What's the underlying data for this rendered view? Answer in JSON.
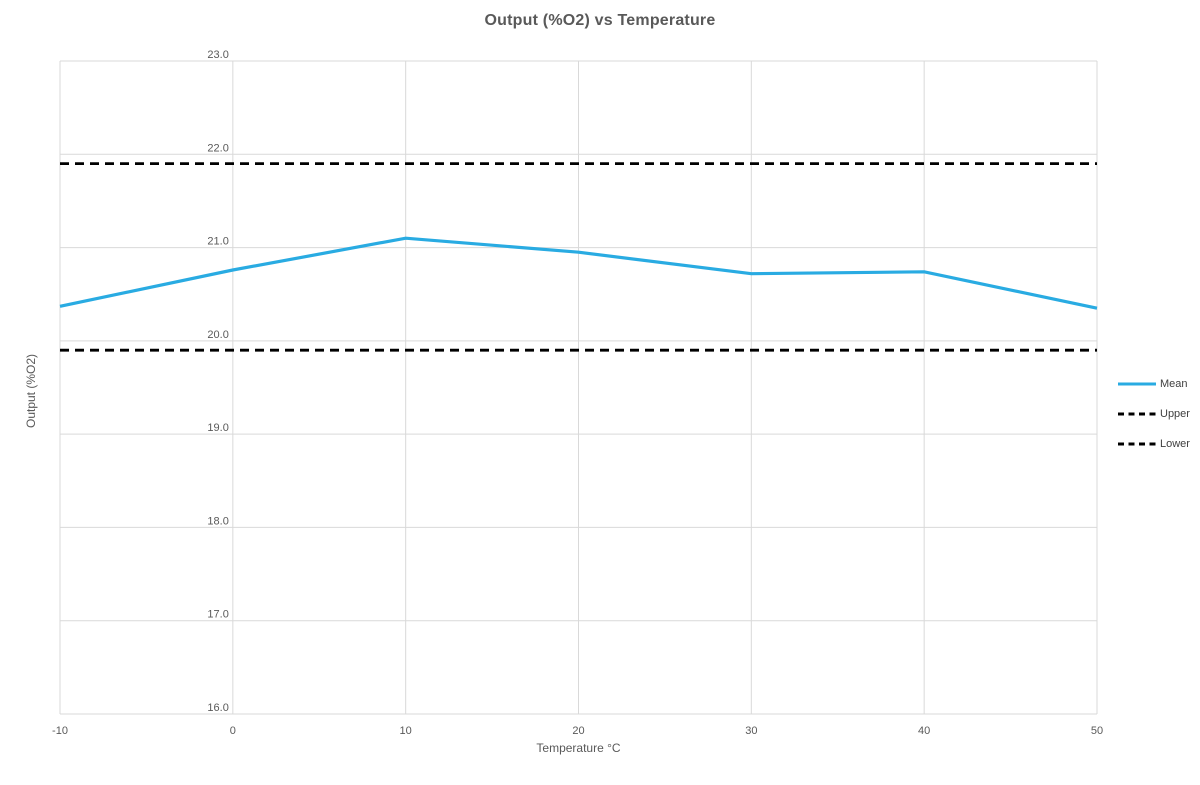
{
  "chart_data": {
    "type": "line",
    "title": "Output (%O2) vs Temperature",
    "xlabel": "Temperature °C",
    "ylabel": "Output (%O2)",
    "x": [
      -10,
      0,
      10,
      20,
      30,
      40,
      50
    ],
    "xlim": [
      -10,
      50
    ],
    "ylim": [
      16.0,
      23.0
    ],
    "x_ticks": [
      -10,
      0,
      10,
      20,
      30,
      40,
      50
    ],
    "x_tick_labels": [
      "-10",
      "0",
      "10",
      "20",
      "30",
      "40",
      "50"
    ],
    "y_ticks": [
      16,
      17,
      18,
      19,
      20,
      21,
      22,
      23
    ],
    "y_tick_labels": [
      "16.0",
      "17.0",
      "18.0",
      "19.0",
      "20.0",
      "21.0",
      "22.0",
      "23.0"
    ],
    "grid": true,
    "legend_position": "right",
    "series": [
      {
        "name": "Mean",
        "style": "solid",
        "color": "#29ABE2",
        "values": [
          20.37,
          20.76,
          21.1,
          20.95,
          20.72,
          20.74,
          20.35
        ]
      },
      {
        "name": "Upper",
        "style": "dashed",
        "color": "#000000",
        "values": [
          21.9,
          21.9,
          21.9,
          21.9,
          21.9,
          21.9,
          21.9
        ]
      },
      {
        "name": "Lower",
        "style": "dashed",
        "color": "#000000",
        "values": [
          19.9,
          19.9,
          19.9,
          19.9,
          19.9,
          19.9,
          19.9
        ]
      }
    ]
  },
  "colors": {
    "background": "#FFFFFF",
    "gridline": "#D9D9D9",
    "axis_text": "#595959",
    "title_text": "#595959",
    "legend_text": "#404040",
    "mean_line": "#29ABE2",
    "limit_line": "#000000"
  }
}
